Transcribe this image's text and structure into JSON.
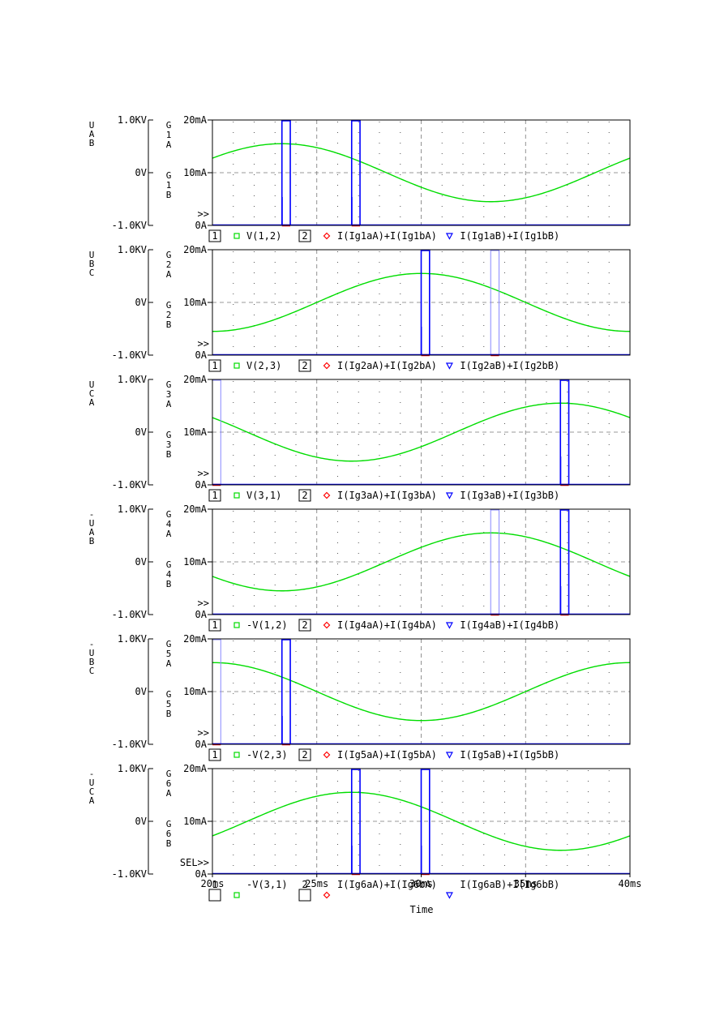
{
  "chart_data": {
    "type": "line",
    "x_axis": {
      "label": "Time",
      "range_ms": [
        20,
        40
      ],
      "ticks": [
        {
          "value": 20,
          "label": "20ms"
        },
        {
          "value": 25,
          "label": "25ms"
        },
        {
          "value": 30,
          "label": "30ms"
        },
        {
          "value": 35,
          "label": "35ms"
        },
        {
          "value": 40,
          "label": "40ms"
        }
      ]
    },
    "y_left": {
      "range_kv": [
        -1.0,
        1.0
      ],
      "tick_labels": [
        "1.0KV",
        "0V",
        "-1.0KV"
      ]
    },
    "y_right": {
      "range_ma": [
        0,
        20
      ],
      "tick_labels": [
        "20mA",
        "10mA",
        "0A"
      ]
    },
    "voltage_amplitude_kv": 0.55,
    "panels": [
      {
        "left_label": "UAB",
        "right_label_a": "G1A",
        "right_label_b": "G1B",
        "marker": ">>",
        "voltage_peak_ms": 23.33,
        "legend": {
          "num1": "1",
          "series1": "V(1,2)",
          "num2": "2",
          "series2": "I(Ig1aA)+I(Ig1bA)",
          "series3": "I(Ig1aB)+I(Ig1bB)"
        },
        "pulses_a": [
          [
            23.33,
            23.73
          ],
          [
            26.67,
            27.07
          ]
        ],
        "pulses_b": [
          [
            23.33,
            23.73
          ],
          [
            26.67,
            27.07
          ]
        ],
        "outline_only": []
      },
      {
        "left_label": "UBC",
        "right_label_a": "G2A",
        "right_label_b": "G2B",
        "marker": ">>",
        "voltage_peak_ms": 30.0,
        "legend": {
          "num1": "1",
          "series1": "V(2,3)",
          "num2": "2",
          "series2": "I(Ig2aA)+I(Ig2bA)",
          "series3": "I(Ig2aB)+I(Ig2bB)"
        },
        "pulses_a": [
          [
            30.0,
            30.4
          ],
          [
            33.33,
            33.73
          ]
        ],
        "pulses_b": [
          [
            30.0,
            30.4
          ],
          [
            33.33,
            33.73
          ]
        ],
        "outline_only": [
          1
        ]
      },
      {
        "left_label": "UCA",
        "right_label_a": "G3A",
        "right_label_b": "G3B",
        "marker": ">>",
        "voltage_peak_ms": 36.67,
        "legend": {
          "num1": "1",
          "series1": "V(3,1)",
          "num2": "2",
          "series2": "I(Ig3aA)+I(Ig3bA)",
          "series3": "I(Ig3aB)+I(Ig3bB)"
        },
        "pulses_a": [
          [
            20.0,
            20.4
          ],
          [
            36.67,
            37.07
          ]
        ],
        "pulses_b": [
          [
            20.0,
            20.4
          ],
          [
            36.67,
            37.07
          ]
        ],
        "outline_only": [
          0
        ]
      },
      {
        "left_label": "-UAB",
        "right_label_a": "G4A",
        "right_label_b": "G4B",
        "marker": ">>",
        "voltage_peak_ms": 33.33,
        "legend": {
          "num1": "1",
          "series1": "-V(1,2)",
          "num2": "2",
          "series2": "I(Ig4aA)+I(Ig4bA)",
          "series3": "I(Ig4aB)+I(Ig4bB)"
        },
        "pulses_a": [
          [
            33.33,
            33.73
          ],
          [
            36.67,
            37.07
          ]
        ],
        "pulses_b": [
          [
            33.33,
            33.73
          ],
          [
            36.67,
            37.07
          ]
        ],
        "outline_only": [
          0
        ]
      },
      {
        "left_label": "-UBC",
        "right_label_a": "G5A",
        "right_label_b": "G5B",
        "marker": ">>",
        "voltage_peak_ms": 40.0,
        "legend": {
          "num1": "1",
          "series1": "-V(2,3)",
          "num2": "2",
          "series2": "I(Ig5aA)+I(Ig5bA)",
          "series3": "I(Ig5aB)+I(Ig5bB)"
        },
        "pulses_a": [
          [
            20.0,
            20.4
          ],
          [
            23.33,
            23.73
          ]
        ],
        "pulses_b": [
          [
            20.0,
            20.4
          ],
          [
            23.33,
            23.73
          ]
        ],
        "outline_only": [
          0
        ]
      },
      {
        "left_label": "-UCA",
        "right_label_a": "G6A",
        "right_label_b": "G6B",
        "marker": "SEL>>",
        "voltage_peak_ms": 26.67,
        "legend": {
          "num1": "1",
          "series1": "-V(3,1)",
          "num2": "2",
          "series2": "I(Ig6aA)+I(Ig6bA)",
          "series3": "I(Ig6aB)+I(Ig6bB)"
        },
        "pulses_a": [
          [
            26.67,
            27.07
          ],
          [
            30.0,
            30.4
          ]
        ],
        "pulses_b": [
          [
            26.67,
            27.07
          ],
          [
            30.0,
            30.4
          ]
        ],
        "outline_only": []
      }
    ],
    "colors": {
      "voltage": "#00dd00",
      "current_a": "#ff0000",
      "current_b": "#0000ff",
      "current_b_faint": "#8888ff",
      "axis": "#000000",
      "grid": "#777777",
      "dot": "#555555"
    },
    "legend_symbols": {
      "series1": "square",
      "series2": "diamond",
      "series3": "triangle"
    },
    "grid": true
  }
}
